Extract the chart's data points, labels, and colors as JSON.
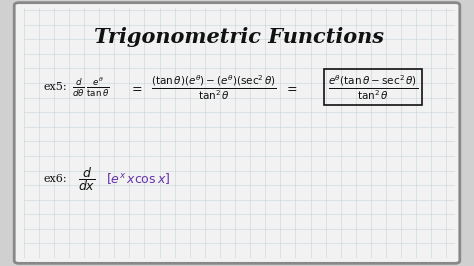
{
  "title": "Trigonometric Functions",
  "bg_color": "#d0d0d0",
  "board_color": "#f2f2f2",
  "grid_color": "#c8d4dc",
  "border_color": "#888888",
  "black_color": "#111111",
  "title_color": "#111111",
  "purple_color": "#6633aa",
  "figsize": [
    4.74,
    2.66
  ],
  "dpi": 100
}
